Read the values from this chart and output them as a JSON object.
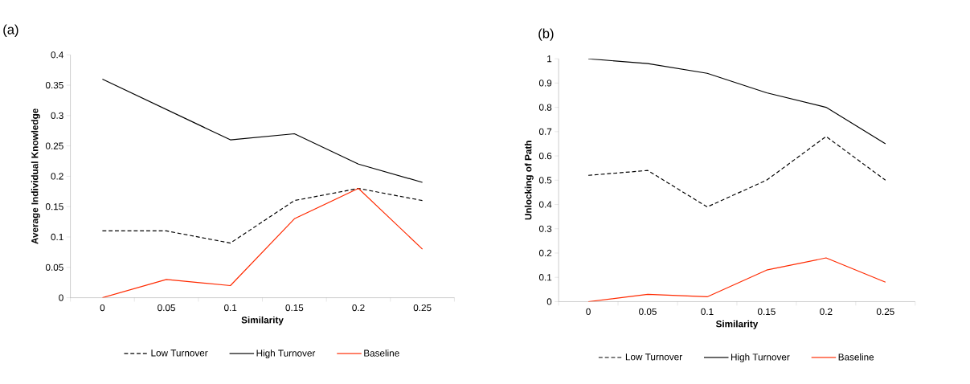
{
  "chart_data": [
    {
      "type": "line",
      "title": "(a)",
      "xlabel": "Similarity",
      "ylabel": "Average Individual Knowledge",
      "categories": [
        "0",
        "0.05",
        "0.1",
        "0.15",
        "0.2",
        "0.25"
      ],
      "ylim": [
        0,
        0.4
      ],
      "yticks": [
        0,
        0.05,
        0.1,
        0.15,
        0.2,
        0.25,
        0.3,
        0.35,
        0.4
      ],
      "legend": "bottom",
      "series": [
        {
          "name": "Low Turnover",
          "color": "#000000",
          "line_style": "dashed",
          "values": [
            0.11,
            0.11,
            0.09,
            0.16,
            0.18,
            0.16
          ]
        },
        {
          "name": "High Turnover",
          "color": "#000000",
          "line_style": "solid",
          "values": [
            0.36,
            0.31,
            0.26,
            0.27,
            0.22,
            0.19
          ]
        },
        {
          "name": "Baseline",
          "color": "#ff2a00",
          "line_style": "solid",
          "values": [
            0,
            0.03,
            0.02,
            0.13,
            0.18,
            0.08
          ]
        }
      ]
    },
    {
      "type": "line",
      "title": "(b)",
      "xlabel": "Similarity",
      "ylabel": "Unlocking of Path",
      "categories": [
        "0",
        "0.05",
        "0.1",
        "0.15",
        "0.2",
        "0.25"
      ],
      "ylim": [
        0,
        1
      ],
      "yticks": [
        0,
        0.1,
        0.2,
        0.3,
        0.4,
        0.5,
        0.6,
        0.7,
        0.8,
        0.9,
        1
      ],
      "legend": "bottom",
      "series": [
        {
          "name": "Low Turnover",
          "color": "#000000",
          "line_style": "dashed",
          "values": [
            0.52,
            0.54,
            0.39,
            0.5,
            0.68,
            0.5
          ]
        },
        {
          "name": "High Turnover",
          "color": "#000000",
          "line_style": "solid",
          "values": [
            1,
            0.98,
            0.94,
            0.86,
            0.8,
            0.65
          ]
        },
        {
          "name": "Baseline",
          "color": "#ff2a00",
          "line_style": "solid",
          "values": [
            0,
            0.03,
            0.02,
            0.13,
            0.18,
            0.08
          ]
        }
      ]
    }
  ]
}
